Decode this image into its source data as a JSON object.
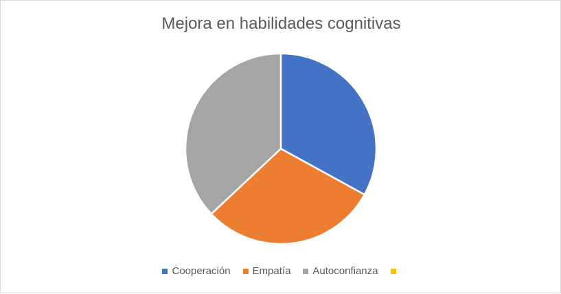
{
  "chart_data": {
    "type": "pie",
    "title": "Mejora en habilidades cognitivas",
    "categories": [
      "Cooperación",
      "Empatía",
      "Autoconfianza",
      ""
    ],
    "values": [
      33,
      30,
      37,
      0
    ],
    "colors": [
      "#4472c4",
      "#ed7d31",
      "#a5a5a5",
      "#ffc000"
    ],
    "legend_position": "bottom"
  }
}
